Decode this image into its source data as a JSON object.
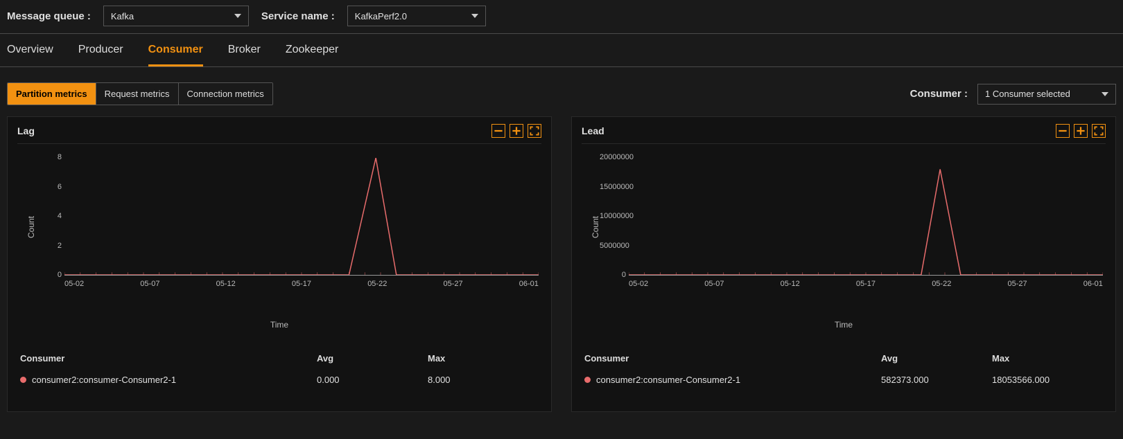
{
  "filters": {
    "message_queue_label": "Message queue :",
    "message_queue_value": "Kafka",
    "service_name_label": "Service name :",
    "service_name_value": "KafkaPerf2.0"
  },
  "tabs": {
    "items": [
      "Overview",
      "Producer",
      "Consumer",
      "Broker",
      "Zookeeper"
    ],
    "active_index": 2
  },
  "subtabs": {
    "items": [
      "Partition metrics",
      "Request metrics",
      "Connection metrics"
    ],
    "active_index": 0
  },
  "consumer_filter": {
    "label": "Consumer :",
    "value": "1 Consumer selected"
  },
  "colors": {
    "accent": "#f29111",
    "series": "#e86c6c",
    "bg": "#1a1a1a",
    "card_bg": "#121212",
    "axis": "#9a9a9a",
    "tick_mark": "#e86c6c"
  },
  "charts": [
    {
      "title": "Lag",
      "ylabel": "Count",
      "xlabel": "Time",
      "ylim": [
        0,
        8
      ],
      "yticks": [
        0,
        2,
        4,
        6,
        8
      ],
      "xlim": [
        "05-02",
        "06-01"
      ],
      "xticks": [
        "05-02",
        "05-07",
        "05-12",
        "05-17",
        "05-22",
        "05-27",
        "06-01"
      ],
      "x_days": [
        2,
        7,
        12,
        17,
        22,
        27,
        32
      ],
      "x_range_days": [
        2,
        32
      ],
      "series": [
        {
          "name": "consumer2:consumer-Consumer2-1",
          "color": "#e86c6c",
          "points": [
            [
              2,
              0
            ],
            [
              20,
              0
            ],
            [
              21.7,
              8
            ],
            [
              23,
              0
            ],
            [
              32,
              0
            ]
          ],
          "avg": "0.000",
          "max": "8.000"
        }
      ],
      "legend_headers": {
        "name": "Consumer",
        "avg": "Avg",
        "max": "Max"
      }
    },
    {
      "title": "Lead",
      "ylabel": "Count",
      "xlabel": "Time",
      "ylim": [
        0,
        20000000
      ],
      "yticks": [
        0,
        5000000,
        10000000,
        15000000,
        20000000
      ],
      "xlim": [
        "05-02",
        "06-01"
      ],
      "xticks": [
        "05-02",
        "05-07",
        "05-12",
        "05-17",
        "05-22",
        "05-27",
        "06-01"
      ],
      "x_days": [
        2,
        7,
        12,
        17,
        22,
        27,
        32
      ],
      "x_range_days": [
        2,
        32
      ],
      "series": [
        {
          "name": "consumer2:consumer-Consumer2-1",
          "color": "#e86c6c",
          "points": [
            [
              2,
              0
            ],
            [
              20.5,
              0
            ],
            [
              21.7,
              18053566
            ],
            [
              23,
              0
            ],
            [
              32,
              0
            ]
          ],
          "avg": "582373.000",
          "max": "18053566.000"
        }
      ],
      "legend_headers": {
        "name": "Consumer",
        "avg": "Avg",
        "max": "Max"
      }
    }
  ]
}
